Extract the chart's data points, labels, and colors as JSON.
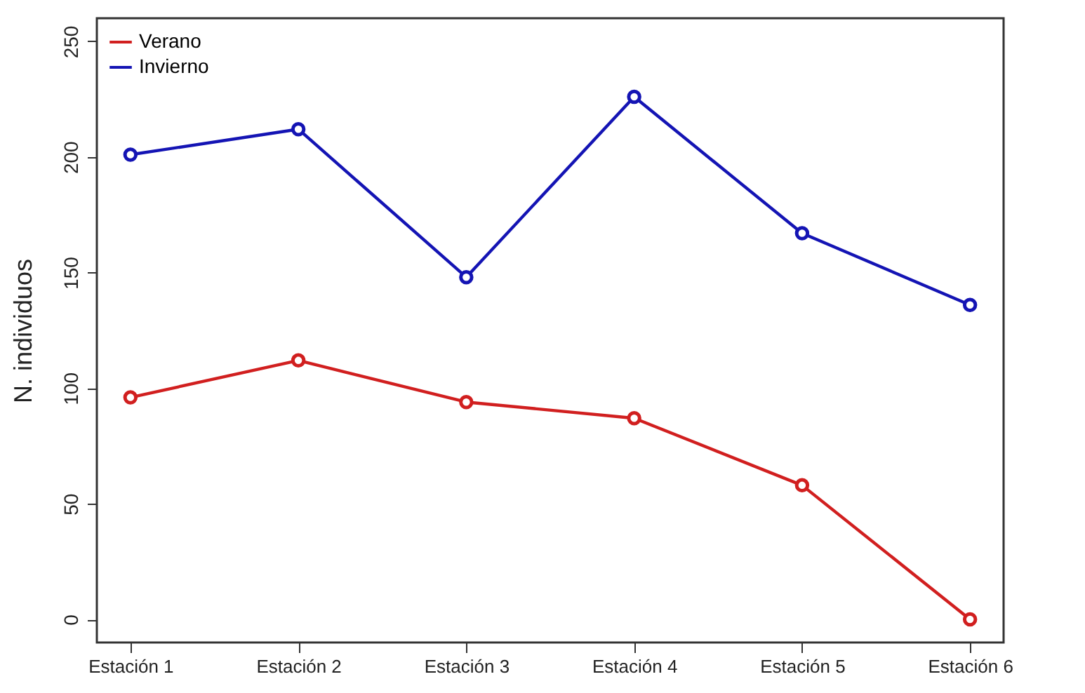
{
  "chart_data": {
    "type": "line",
    "ylabel": "N. individuos",
    "categories": [
      "Estación 1",
      "Estación 2",
      "Estación 3",
      "Estación 4",
      "Estación 5",
      "Estación 6"
    ],
    "series": [
      {
        "name": "Verano",
        "color": "#d11f1f",
        "values": [
          96,
          112,
          94,
          87,
          58,
          0
        ]
      },
      {
        "name": "Invierno",
        "color": "#1414b4",
        "values": [
          201,
          212,
          148,
          226,
          167,
          136
        ]
      }
    ],
    "ylim": [
      -10,
      260
    ],
    "yticks": [
      0,
      50,
      100,
      150,
      200,
      250
    ],
    "grid": false,
    "legend": "top left",
    "marker": "circle",
    "line_style": "solid"
  }
}
